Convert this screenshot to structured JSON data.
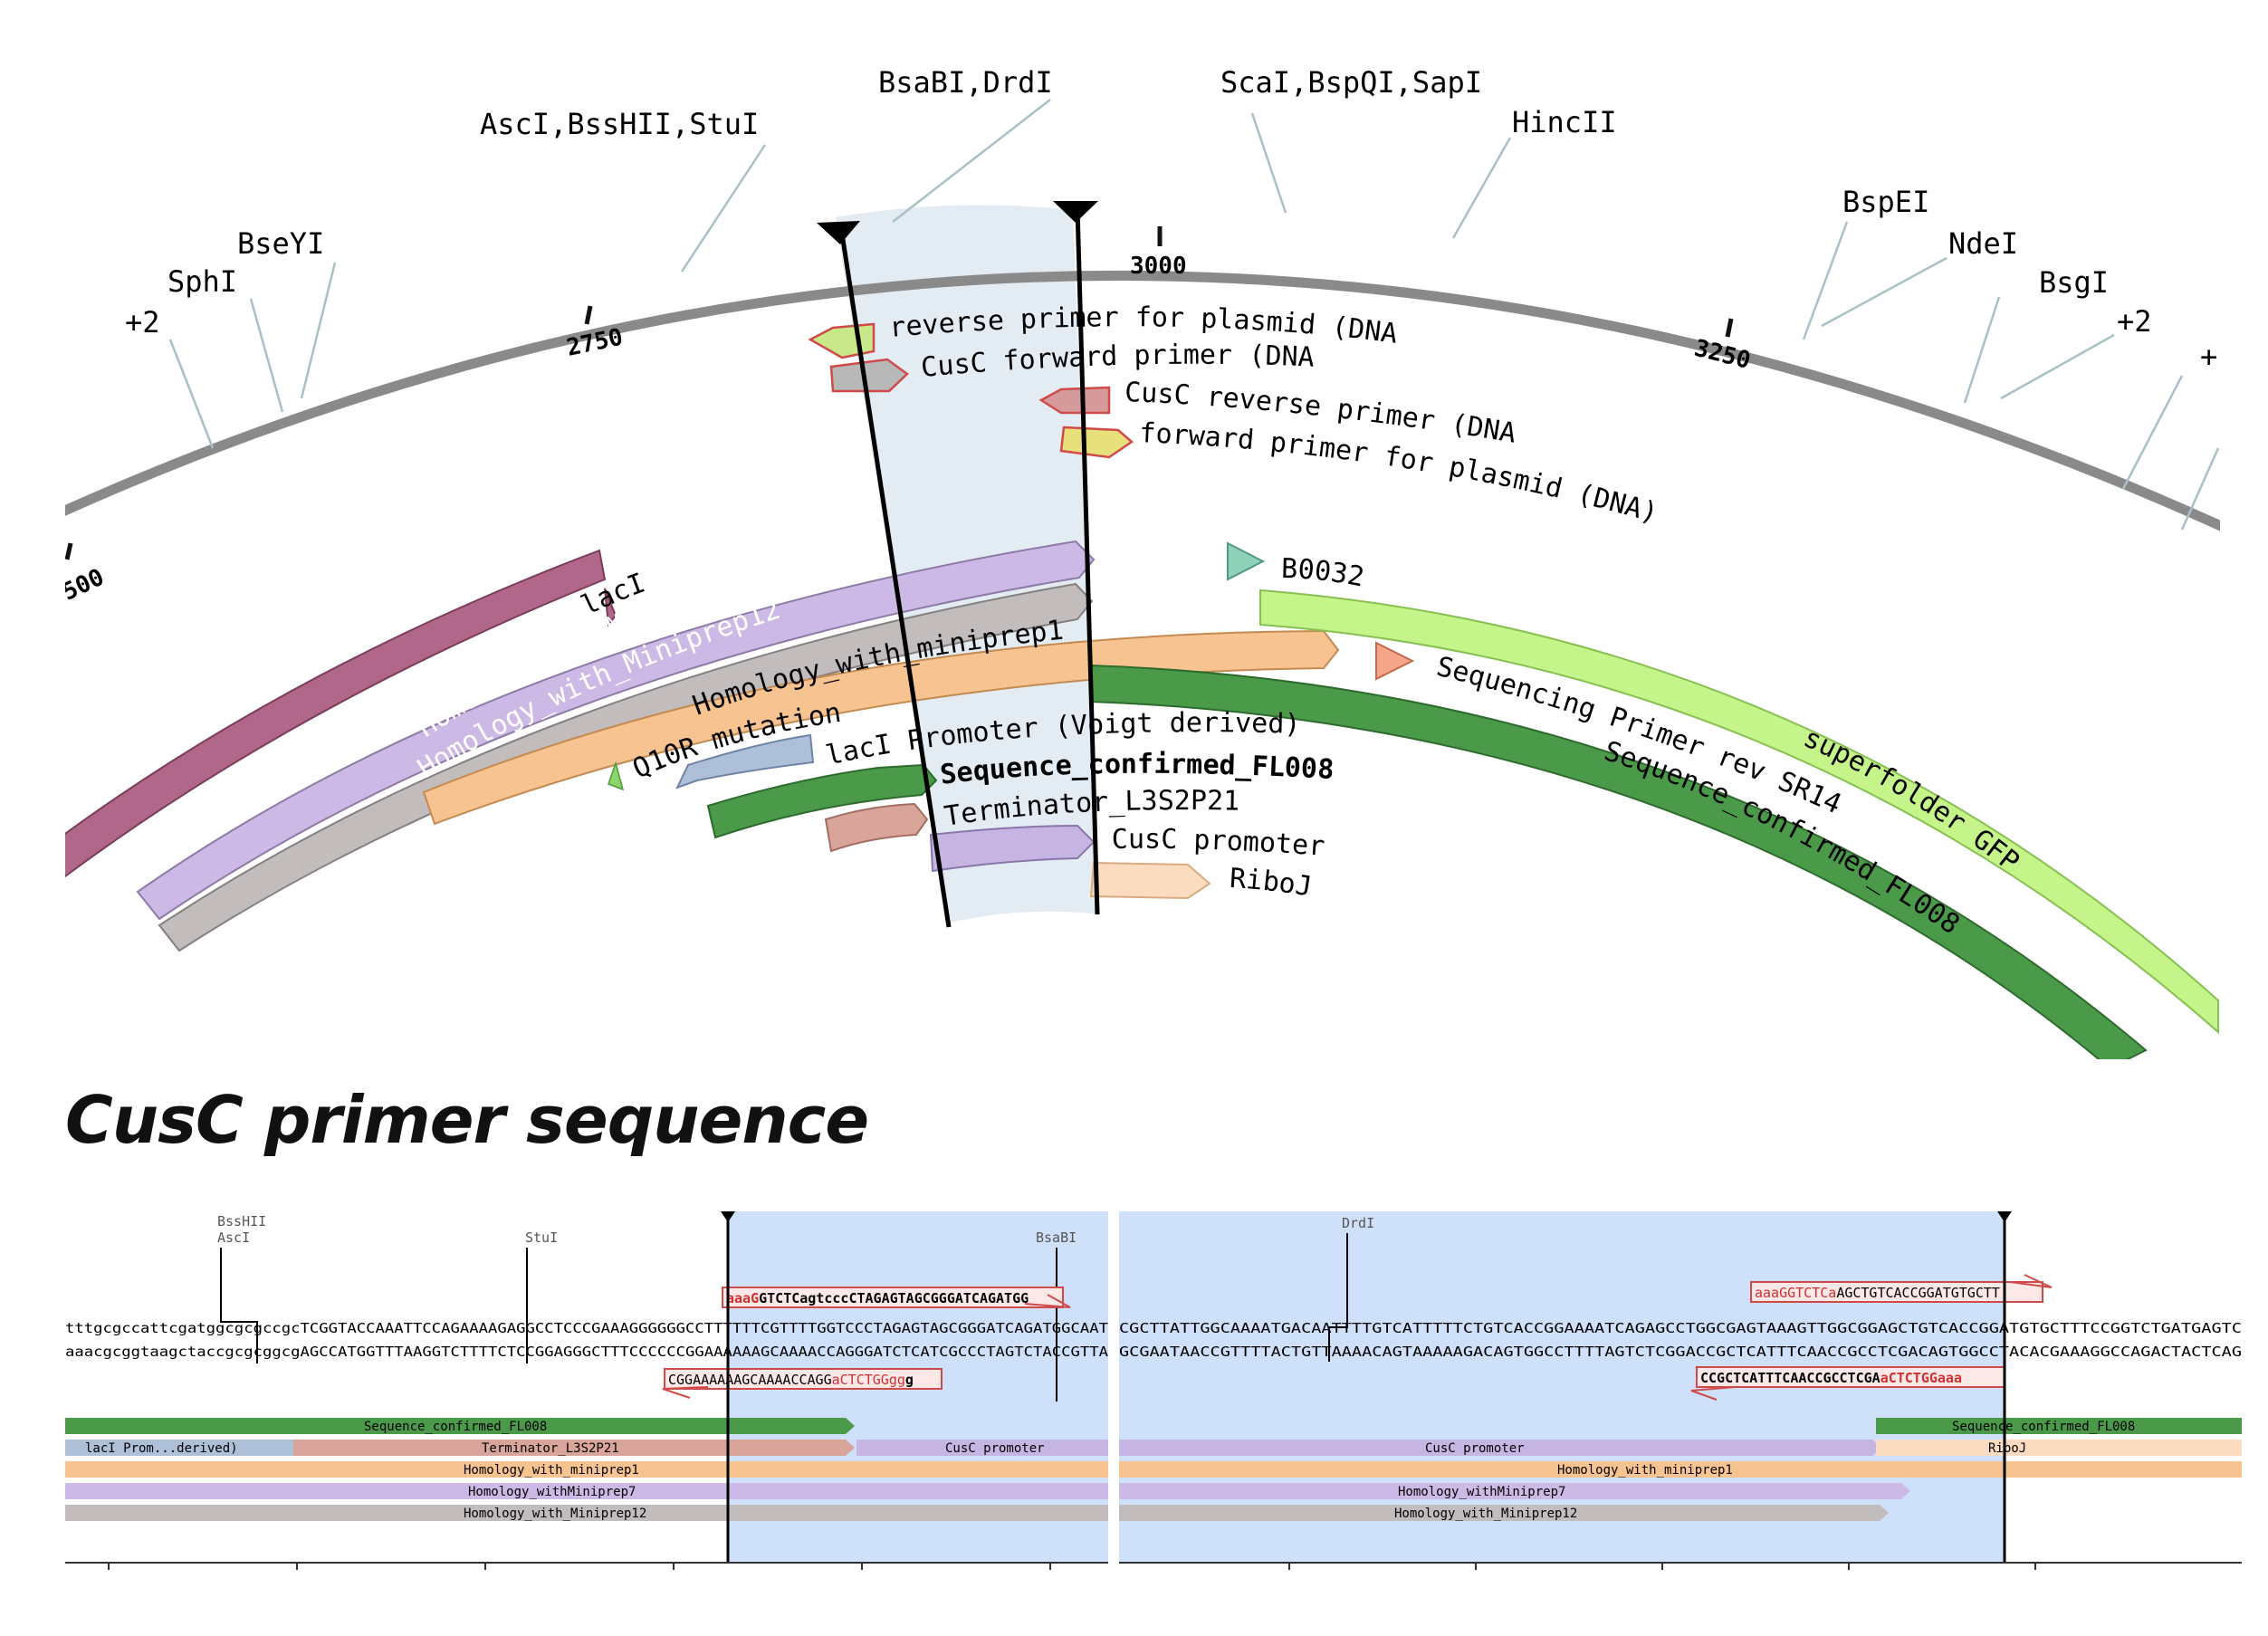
{
  "colors": {
    "backbone": "#8a8a8a",
    "selection": "#d9e6ee",
    "seq_selection": "#cfe0fb",
    "laci_gene": "#b0678a",
    "homology7": "#cdb9e6",
    "homology12": "#c2bcbc",
    "homology_mp1": "#f7c390",
    "seq_confirmed": "#4a9a4a",
    "sfgfp": "#c4f48a",
    "terminator": "#d9a59a",
    "cusc_promoter": "#c6b4e3",
    "riboj": "#fbdcc0",
    "laci_promoter": "#aebfd8",
    "b0032": "#8ed1b8",
    "seqprimer": "#f4a58a",
    "primer_red": "#e06060",
    "primer_yellow": "#e8e07a",
    "primer_green": "#c9e88a"
  },
  "circular_map": {
    "coordinate_labels": [
      "2500",
      "2750",
      "3000",
      "3250"
    ],
    "enzyme_labels": [
      "+2",
      "SphI",
      "BseYI",
      "AscI,BssHII,StuI",
      "BsaBI,DrdI",
      "ScaI,BspQI,SapI",
      "HincII",
      "BspEI",
      "NdeI",
      "BsgI",
      "+2",
      "+"
    ],
    "primers": [
      "reverse primer for plasmid (DNA)",
      "CusC forward primer (DNA)",
      "CusC reverse primer (DNA)",
      "forward primer for plasmid (DNA)"
    ],
    "feature_labels": {
      "laci": "lacI",
      "homology7": "Homology_withMiniprep7",
      "homology12": "Homology_with_Miniprep12",
      "homology_mp1": "Homology_with_miniprep1",
      "q10r": "Q10R mutation",
      "laci_promoter": "lacI Promoter (Voigt derived)",
      "seq_confirmed_inner": "Sequence_confirmed_FL008",
      "terminator": "Terminator_L3S2P21",
      "cusc_promoter": "CusC promoter",
      "riboj": "RiboJ",
      "b0032": "B0032",
      "seq_primer": "Sequencing Primer rev SR143",
      "sfgfp": "superfolder GFP",
      "seq_confirmed_outer": "Sequence_confirmed_FL008"
    }
  },
  "heading": "CusC primer sequence",
  "sequence_left": {
    "enzymes": [
      "BssHII",
      "AscI",
      "StuI",
      "BsaBI"
    ],
    "top_strand": "tttgcgccattcgatggcgcgccgcTCGGTACCAAATTCCAGAAAAGAGGCCTCCCGAAAGGGGGGCCTTTTTTCGTTTTGGTCCCTAGAGTAGCGGGATCAGATGGCAAT",
    "bottom_strand": "aaacgcggtaagctaccgcgcggcgAGCCATGGTTTAAGGTCTTTTCTCCGGAGGGCTTTCCCCCCGGAAAAAAGCAAAACCAGGGATCTCATCGCCCTAGTCTACCGTTA",
    "fwd_primer_black": "GTCTCagtcccCTAGAGTAGCGGGATCAGATGG",
    "fwd_primer_red": "aaaG",
    "rev_primer_black": "CGGAAAAAAGCAAAACCAGG",
    "rev_primer_red": "aCTCTGGgg",
    "rev_primer_tail": "g",
    "features": {
      "seq_confirmed": "Sequence_confirmed_FL008",
      "laci_promoter": "lacI Prom...derived)",
      "terminator": "Terminator_L3S2P21",
      "cusc_promoter": "CusC promoter",
      "homology_mp1": "Homology_with_miniprep1",
      "homology7": "Homology_withMiniprep7",
      "homology12": "Homology_with_Miniprep12"
    },
    "axis_ticks": [
      "2,780",
      "2,800",
      "2,820",
      "2,840",
      "2,860",
      "2,880"
    ]
  },
  "sequence_right": {
    "enzymes": [
      "DrdI"
    ],
    "top_strand": "CGCTTATTGGCAAAATGACAATTTTGTCATTTTTCTGTCACCGGAAAATCAGAGCCTGGCGAGTAAAGTTGGCGGAGCTGTCACCGGATGTGCTTTCCGGTCTGATGAGTC",
    "bottom_strand": "GCGAATAACCGTTTTACTGTTAAAACAGTAAAAAGACAGTGGCCTTTTAGTCTCGGACCGCTCATTTCAACCGCCTCGACAGTGGCCTACACGAAAGGCCAGACTACTCAG",
    "fwd_primer_red": "aaaGGTCTCa",
    "fwd_primer_black": "AGCTGTCACCGGATGTGCTT",
    "rev_primer_black": "CCGCTCATTTCAACCGCCTCGA",
    "rev_primer_red": "aCTCTGGaaa",
    "features": {
      "cusc_promoter": "CusC promoter",
      "seq_confirmed": "Sequence_confirmed_FL008",
      "riboj": "RiboJ",
      "homology_mp1": "Homology_with_miniprep1",
      "homology7": "Homology_withMiniprep7",
      "homology12": "Homology_with_Miniprep12"
    },
    "axis_ticks": [
      "2,900",
      "2,920",
      "2,940",
      "2,960",
      "2,980"
    ]
  }
}
